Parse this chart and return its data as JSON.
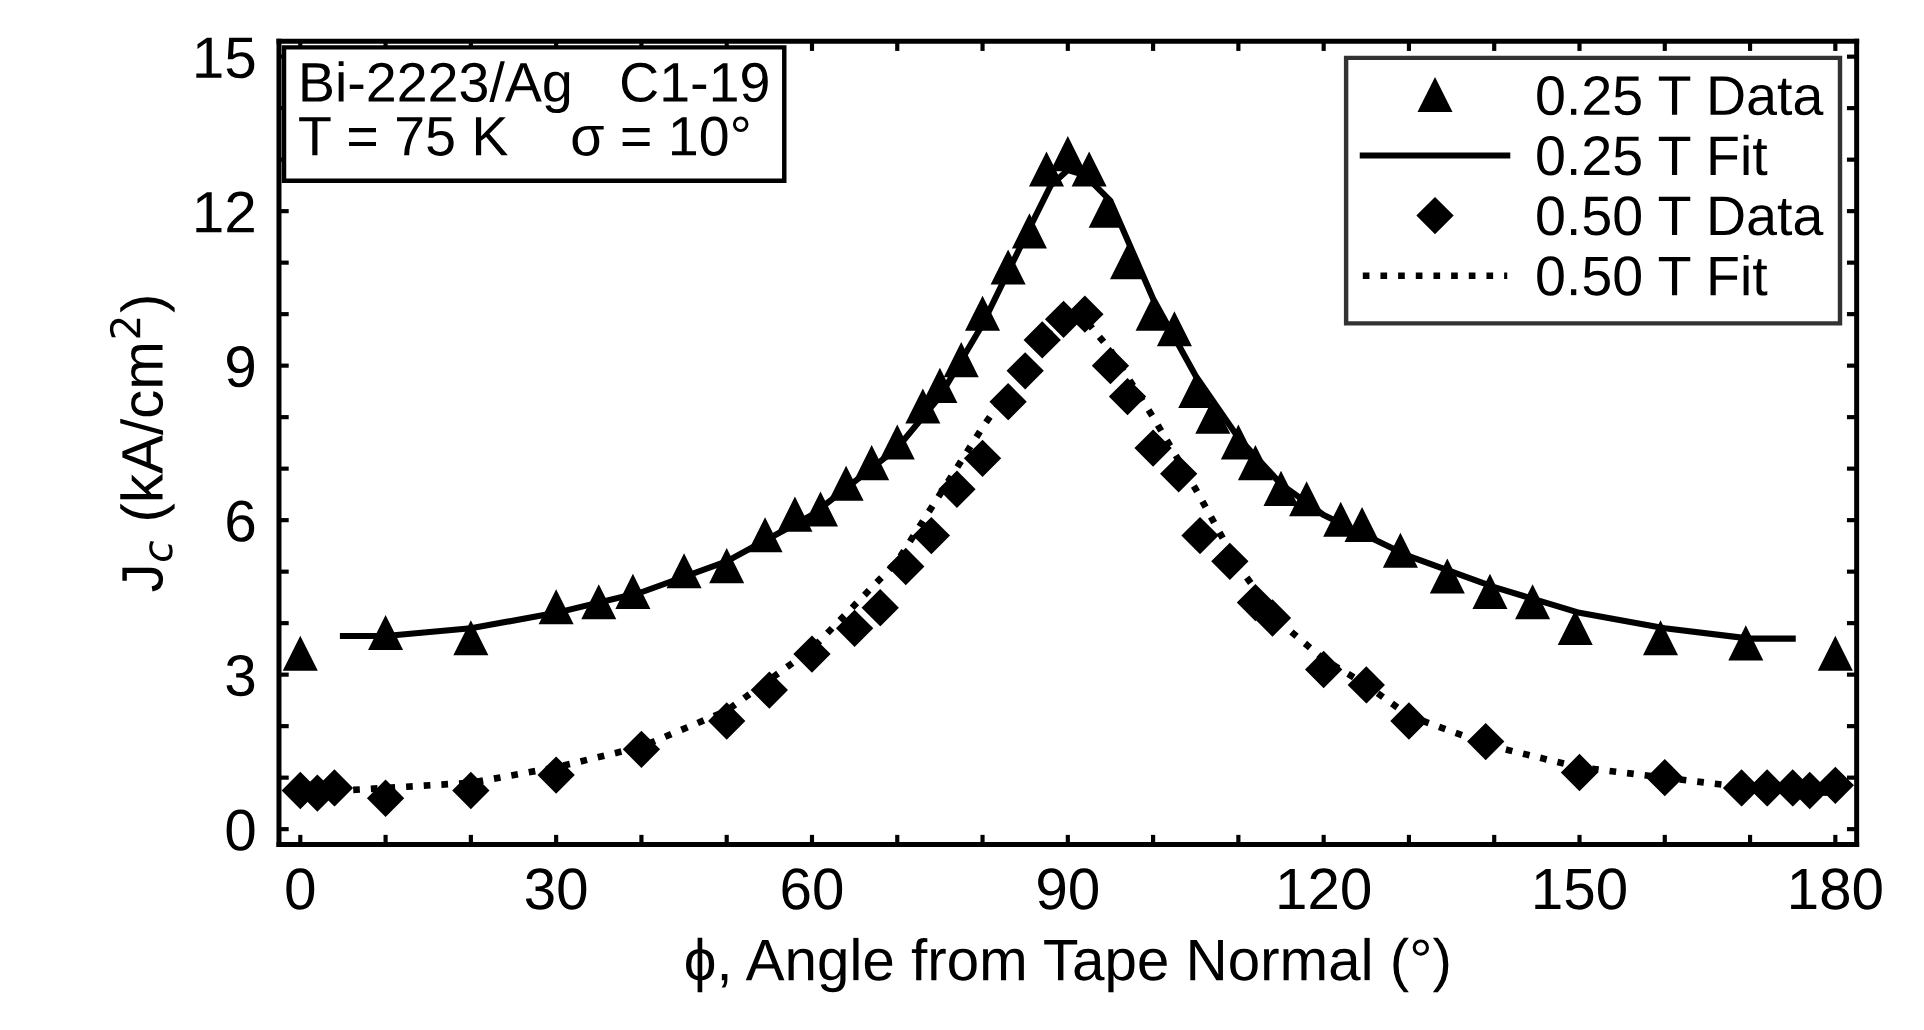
{
  "chart_data": {
    "type": "scatter",
    "xlabel": "ϕ, Angle from Tape Normal (°)",
    "ylabel": "J$_{c}$ (kA/cm$^{2}$)",
    "annotations": [
      "Bi-2223/Ag   C1-19\nT = 75 K    σ = 10°"
    ],
    "xlim": [
      -2.5,
      182.5
    ],
    "ylim": [
      -0.3,
      15.3
    ],
    "xticks": [
      0,
      {
        "value": 10,
        "label": null
      },
      {
        "value": 20,
        "label": null
      },
      30,
      {
        "value": 40,
        "label": null
      },
      {
        "value": 50,
        "label": null
      },
      60,
      {
        "value": 70,
        "label": null
      },
      {
        "value": 80,
        "label": null
      },
      90,
      {
        "value": 100,
        "label": null
      },
      {
        "value": 110,
        "label": null
      },
      120,
      {
        "value": 130,
        "label": null
      },
      {
        "value": 140,
        "label": null
      },
      150,
      {
        "value": 160,
        "label": null
      },
      {
        "value": 170,
        "label": null
      },
      180
    ],
    "yticks": [
      0,
      {
        "value": 1,
        "label": null
      },
      {
        "value": 2,
        "label": null
      },
      3,
      {
        "value": 4,
        "label": null
      },
      {
        "value": 5,
        "label": null
      },
      6,
      {
        "value": 7,
        "label": null
      },
      {
        "value": 8,
        "label": null
      },
      9,
      {
        "value": 10,
        "label": null
      },
      {
        "value": 11,
        "label": null
      },
      12,
      {
        "value": 13,
        "label": null
      },
      {
        "value": 14,
        "label": null
      },
      15
    ],
    "grid": false,
    "legend": "top right",
    "series": [
      {
        "name": "0.25 T Data",
        "marker": "triangle",
        "color": "#000000",
        "x": [
          0,
          10,
          20,
          30,
          35,
          39,
          45,
          50,
          54.5,
          58,
          61,
          64,
          67,
          70,
          73,
          75,
          77.5,
          80,
          83,
          85.5,
          87.5,
          90,
          92.5,
          94.5,
          97,
          100,
          102.5,
          105,
          107,
          110,
          112,
          115,
          118,
          122,
          124.5,
          129,
          134.5,
          139.5,
          144.5,
          149.5,
          159.5,
          169.5,
          180
        ],
        "values": [
          3.4,
          3.8,
          3.7,
          4.3,
          4.4,
          4.6,
          5.0,
          5.1,
          5.7,
          6.1,
          6.2,
          6.7,
          7.1,
          7.5,
          8.2,
          8.6,
          9.1,
          10.0,
          10.9,
          11.6,
          12.8,
          13.1,
          12.8,
          12.0,
          11.0,
          10.0,
          9.7,
          8.5,
          8.0,
          7.5,
          7.1,
          6.6,
          6.4,
          6.0,
          5.9,
          5.4,
          4.9,
          4.6,
          4.4,
          3.9,
          3.7,
          3.6,
          3.4
        ]
      },
      {
        "name": "0.25 T Fit",
        "type": "line",
        "line_style": "solid",
        "color": "#000000",
        "x": [
          5,
          10,
          20,
          30,
          40,
          50,
          60,
          70,
          75,
          80,
          85,
          88,
          90,
          92,
          95,
          100,
          105,
          110,
          115,
          120,
          130,
          140,
          150,
          160,
          170,
          175
        ],
        "values": [
          3.75,
          3.75,
          3.9,
          4.2,
          4.6,
          5.2,
          6.1,
          7.4,
          8.4,
          9.8,
          11.5,
          12.5,
          12.8,
          12.7,
          12.2,
          10.3,
          8.8,
          7.6,
          6.7,
          6.1,
          5.3,
          4.7,
          4.2,
          3.9,
          3.7,
          3.7
        ]
      },
      {
        "name": "0.50 T Data",
        "marker": "diamond",
        "color": "#000000",
        "x": [
          0,
          2,
          4,
          10,
          20,
          30,
          40,
          50,
          55,
          60,
          65,
          68,
          71,
          74,
          77,
          80,
          83,
          85,
          87,
          89.5,
          92,
          95,
          97,
          100,
          103,
          105.5,
          109,
          112,
          114,
          120,
          125,
          130,
          139,
          150,
          160,
          169,
          172,
          175,
          177,
          180
        ],
        "values": [
          0.75,
          0.7,
          0.8,
          0.6,
          0.75,
          1.05,
          1.55,
          2.1,
          2.7,
          3.4,
          3.9,
          4.3,
          5.1,
          5.7,
          6.6,
          7.2,
          8.3,
          8.9,
          9.5,
          9.9,
          10.0,
          9.0,
          8.4,
          7.4,
          6.9,
          5.7,
          5.2,
          4.4,
          4.1,
          3.1,
          2.8,
          2.1,
          1.7,
          1.1,
          1.0,
          0.8,
          0.8,
          0.8,
          0.75,
          0.85
        ]
      },
      {
        "name": "0.50 T Fit",
        "type": "line",
        "line_style": "dotted",
        "color": "#000000",
        "x": [
          0,
          10,
          20,
          30,
          40,
          50,
          60,
          70,
          75,
          80,
          85,
          88,
          90,
          92,
          95,
          100,
          105,
          110,
          115,
          120,
          125,
          130,
          140,
          150,
          160,
          170,
          180
        ],
        "values": [
          0.7,
          0.8,
          0.9,
          1.2,
          1.6,
          2.3,
          3.5,
          5.2,
          6.5,
          7.8,
          9.0,
          9.7,
          10.0,
          9.9,
          9.3,
          8.0,
          6.6,
          5.1,
          4.0,
          3.3,
          2.8,
          2.2,
          1.6,
          1.2,
          1.0,
          0.8,
          0.7
        ]
      }
    ]
  }
}
